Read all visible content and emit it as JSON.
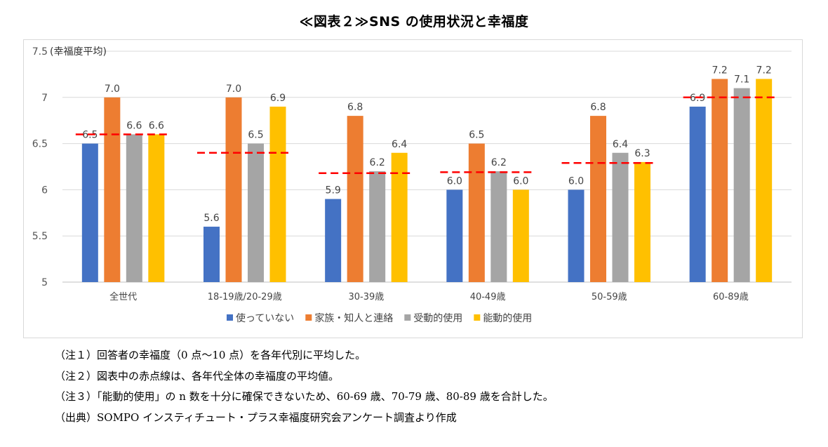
{
  "title": "≪図表２≫SNS の使用状況と幸福度",
  "chart_data": {
    "type": "bar",
    "y_unit_label": "(幸福度平均)",
    "ylim": [
      5,
      7.5
    ],
    "yticks": [
      "7.5",
      "7",
      "6.5",
      "6",
      "5.5",
      "5"
    ],
    "ytick_values": [
      7.5,
      7,
      6.5,
      6,
      5.5,
      5
    ],
    "categories": [
      "全世代",
      "18-19歳/20-29歳",
      "30-39歳",
      "40-49歳",
      "50-59歳",
      "60-89歳"
    ],
    "series": [
      {
        "name": "使っていない",
        "color": "#4472c4",
        "values": [
          6.5,
          5.6,
          5.9,
          6.0,
          6.0,
          6.9
        ],
        "labels": [
          "6.5",
          "5.6",
          "5.9",
          "6.0",
          "6.0",
          "6.9"
        ]
      },
      {
        "name": "家族・知人と連絡",
        "color": "#ed7d31",
        "values": [
          7.0,
          7.0,
          6.8,
          6.5,
          6.8,
          7.2
        ],
        "labels": [
          "7.0",
          "7.0",
          "6.8",
          "6.5",
          "6.8",
          "7.2"
        ]
      },
      {
        "name": "受動的使用",
        "color": "#a5a5a5",
        "values": [
          6.6,
          6.5,
          6.2,
          6.2,
          6.4,
          7.1
        ],
        "labels": [
          "6.6",
          "6.5",
          "6.2",
          "6.2",
          "6.4",
          "7.1"
        ]
      },
      {
        "name": "能動的使用",
        "color": "#ffc000",
        "values": [
          6.6,
          6.9,
          6.4,
          6.0,
          6.3,
          7.2
        ],
        "labels": [
          "6.6",
          "6.9",
          "6.4",
          "6.0",
          "6.3",
          "7.2"
        ]
      }
    ],
    "average_line": {
      "color": "#ff0000",
      "style": "dashed",
      "values": [
        6.6,
        6.4,
        6.18,
        6.19,
        6.29,
        7.0
      ]
    },
    "grid": true,
    "legend_position": "bottom"
  },
  "notes": [
    "（注１）回答者の幸福度（0 点～10 点）を各年代別に平均した。",
    "（注２）図表中の赤点線は、各年代全体の幸福度の平均値。",
    "（注３）「能動的使用」の n 数を十分に確保できないため、60-69 歳、70-79 歳、80-89 歳を合計した。",
    "（出典）SOMPO インスティチュート・プラス幸福度研究会アンケート調査より作成"
  ]
}
